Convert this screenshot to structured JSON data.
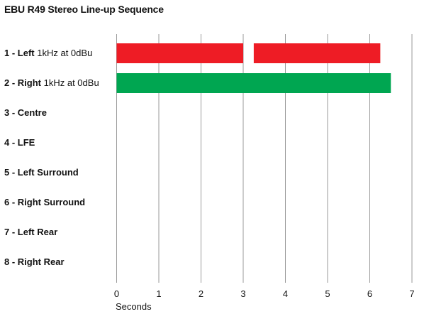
{
  "chart_data": {
    "type": "bar",
    "title": "EBU R49 Stereo Line-up Sequence",
    "xlabel": "Seconds",
    "xlim": [
      0,
      7
    ],
    "x_ticks": [
      "0",
      "1",
      "2",
      "3",
      "4",
      "5",
      "6",
      "7"
    ],
    "grid": true,
    "categories": [
      {
        "label": "1 - Left",
        "detail": "1kHz at 0dBu"
      },
      {
        "label": "2 - Right",
        "detail": "1kHz at 0dBu"
      },
      {
        "label": "3 - Centre",
        "detail": ""
      },
      {
        "label": "4 - LFE",
        "detail": ""
      },
      {
        "label": "5 - Left Surround",
        "detail": ""
      },
      {
        "label": "6 - Right Surround",
        "detail": ""
      },
      {
        "label": "7 - Left Rear",
        "detail": ""
      },
      {
        "label": "8 - Right Rear",
        "detail": ""
      }
    ],
    "segments": [
      {
        "row": 0,
        "start": 0,
        "end": 3.0,
        "color": "#ee1c25"
      },
      {
        "row": 0,
        "start": 3.25,
        "end": 6.25,
        "color": "#ee1c25"
      },
      {
        "row": 1,
        "start": 0,
        "end": 6.5,
        "color": "#00a651"
      }
    ]
  }
}
